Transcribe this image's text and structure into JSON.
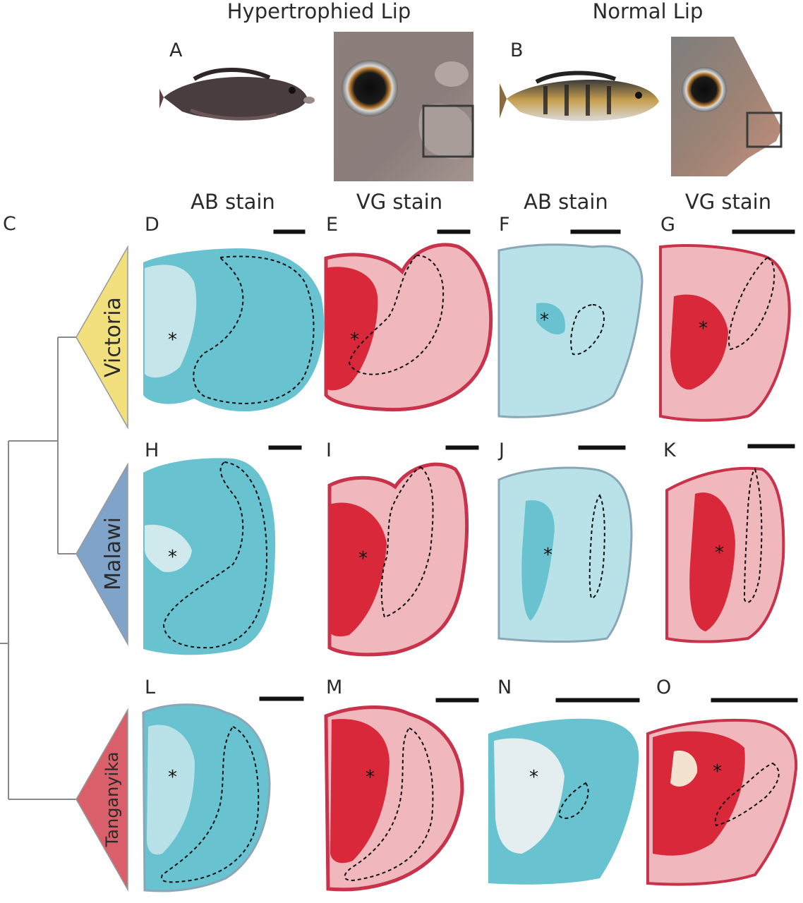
{
  "headers": {
    "hypertrophied": "Hypertrophied Lip",
    "normal": "Normal Lip"
  },
  "photo_labels": {
    "a": "A",
    "b": "B"
  },
  "column_headers": [
    "AB stain",
    "VG stain",
    "AB stain",
    "VG stain"
  ],
  "tree_label": "C",
  "clades": [
    "Victoria",
    "Malawi",
    "Tanganyika"
  ],
  "panels": {
    "victoria": [
      "D",
      "E",
      "F",
      "G"
    ],
    "malawi": [
      "H",
      "I",
      "J",
      "K"
    ],
    "tanganyika": [
      "L",
      "M",
      "N",
      "O"
    ]
  },
  "asterisk": "*",
  "colors": {
    "victoria": "#f2e07e",
    "malawi": "#7fa3c9",
    "tanganyika": "#d9606a",
    "ab_stain": "#68c2cf",
    "ab_stain_light": "#b9e2e8",
    "vg_red": "#d8283a",
    "vg_pink": "#f0b8bc",
    "vg_orange": "#efc28f"
  }
}
